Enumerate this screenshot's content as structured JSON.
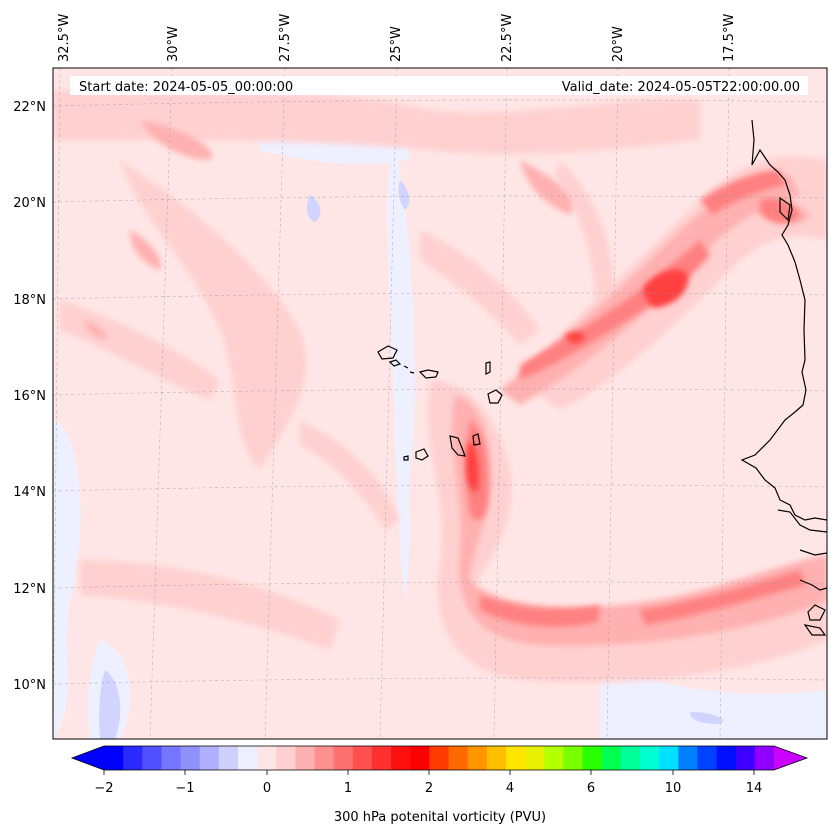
{
  "map": {
    "start_date": "Start date: 2024-05-05_00:00:00",
    "valid_date": "Valid_date: 2024-05-05T22:00:00.00",
    "lon_labels": [
      "32.5°W",
      "30°W",
      "27.5°W",
      "25°W",
      "22.5°W",
      "20°W",
      "17.5°W"
    ],
    "lat_labels": [
      "22°N",
      "20°N",
      "18°N",
      "16°N",
      "14°N",
      "12°N",
      "10°N"
    ],
    "projection_gridlines": true,
    "coastline_color": "#000000",
    "field_colors": {
      "background": "#ffe6e6",
      "light": "#ffd0d0",
      "medium": "#ffb0b0",
      "strong": "#ff8080",
      "core": "#ff4040",
      "negative": "#eef0ff",
      "negative_strong": "#d0d4ff"
    }
  },
  "colorbar": {
    "title": "300 hPa potenital vorticity (PVU)",
    "tick_labels": [
      "−2",
      "−1",
      "0",
      "1",
      "2",
      "4",
      "6",
      "10",
      "14"
    ],
    "extend": "both",
    "colors": [
      "#0000ff",
      "#2a2aff",
      "#5050ff",
      "#7575ff",
      "#9090ff",
      "#b0b0ff",
      "#d0d0ff",
      "#eeeeff",
      "#ffe6e6",
      "#ffd0d0",
      "#ffb0b0",
      "#ff9090",
      "#ff7070",
      "#ff5050",
      "#ff3030",
      "#ff1010",
      "#ff0000",
      "#ff3c00",
      "#ff6a00",
      "#ff9600",
      "#ffbe00",
      "#ffe600",
      "#e6f000",
      "#b4ff00",
      "#78ff00",
      "#28ff00",
      "#00ff50",
      "#00ff9a",
      "#00ffd0",
      "#00e0ff",
      "#0080ff",
      "#0040ff",
      "#0010ff",
      "#4000ff",
      "#9000ff"
    ],
    "low_extend_color": "#0000ff",
    "high_extend_color": "#cc00ff"
  }
}
